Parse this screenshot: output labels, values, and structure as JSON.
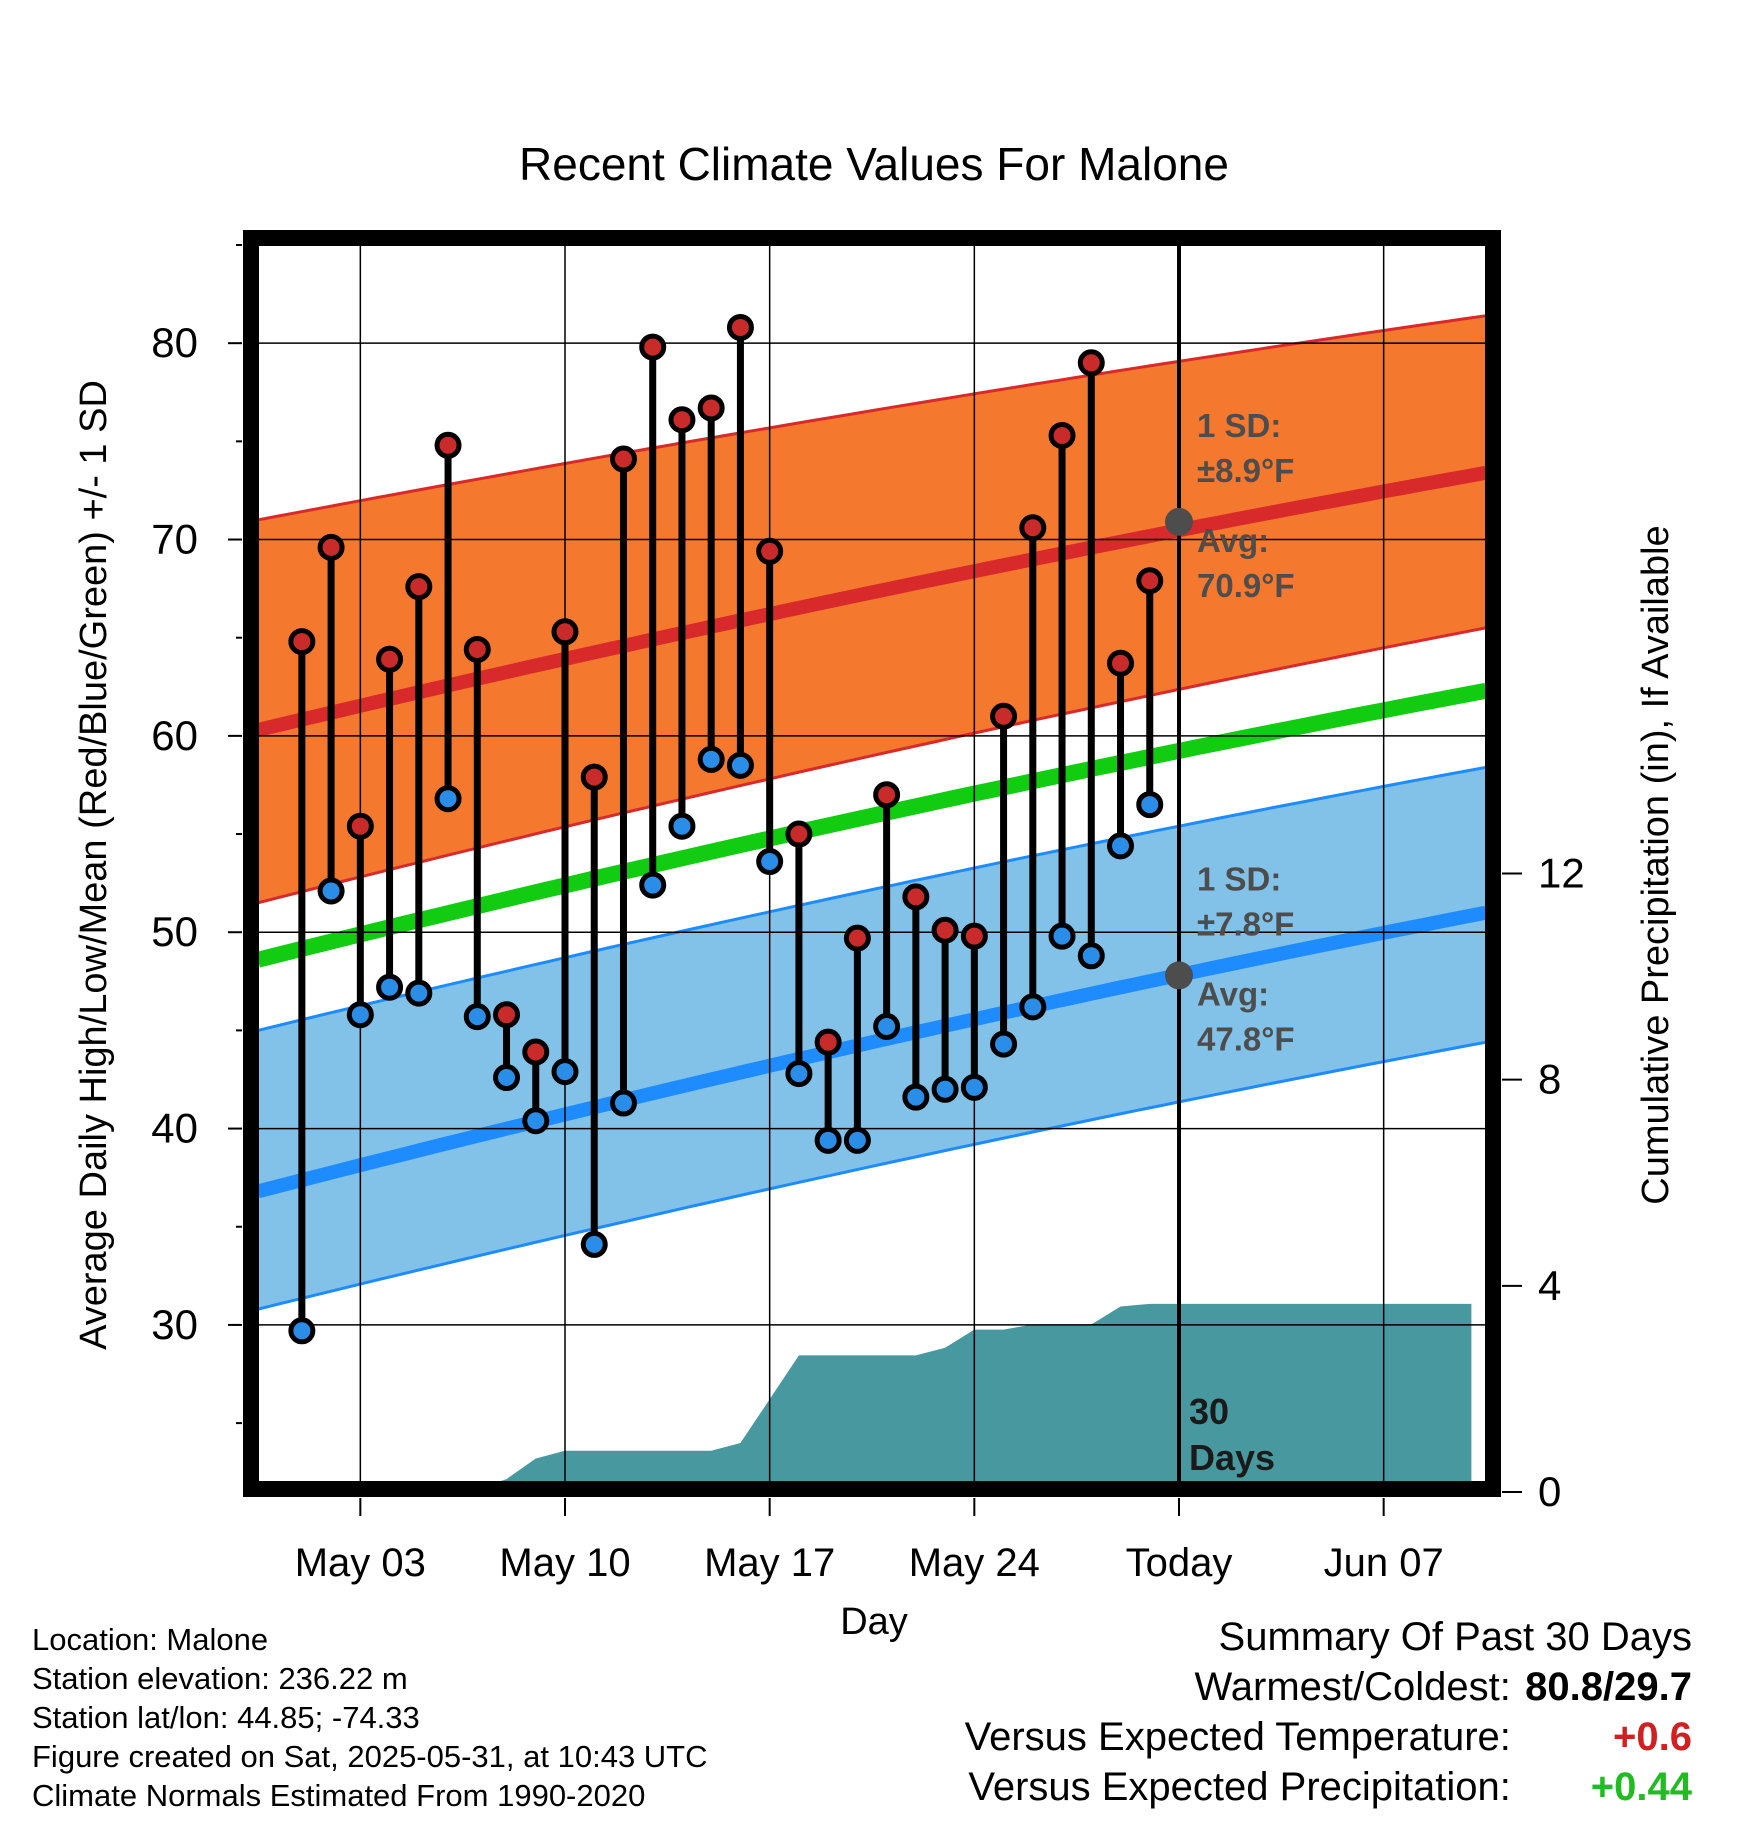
{
  "chart_data": {
    "type": "line",
    "title": "Recent Climate Values For Malone",
    "xlabel": "Day",
    "ylabel": "Average Daily High/Low/Mean (Red/Blue/Green) +/- 1 SD",
    "y2label": "Cumulative Precipitation (in), If Available",
    "ylim": [
      22,
      85
    ],
    "y2lim": [
      0,
      24
    ],
    "xlim": [
      -1.5,
      40.5
    ],
    "x_tick_labels": [
      "May 03",
      "May 10",
      "May 17",
      "May 24",
      "Today",
      "Jun 07"
    ],
    "y_ticks": [
      30,
      40,
      50,
      60,
      70,
      80
    ],
    "y2_ticks": [
      0,
      4,
      8,
      12
    ],
    "today_label": "30\nDays",
    "high_band": {
      "start": {
        "lower": 51.5,
        "mean": 60.3,
        "upper": 71.0
      },
      "end": {
        "lower": 65.5,
        "mean": 73.4,
        "upper": 81.4
      },
      "sd_label": "1 SD:",
      "sd_value": "±8.9°F",
      "avg_label": "Avg:",
      "avg_value": "70.9°F",
      "today_avg": 70.9
    },
    "low_band": {
      "start": {
        "lower": 30.8,
        "mean": 36.8,
        "upper": 45.0
      },
      "end": {
        "lower": 44.4,
        "mean": 51.0,
        "upper": 58.4
      },
      "sd_label": "1 SD:",
      "sd_value": "±7.8°F",
      "avg_label": "Avg:",
      "avg_value": "47.8°F",
      "today_avg": 47.8
    },
    "mean_line": {
      "start": 48.6,
      "end": 62.3
    },
    "days": [
      0,
      1,
      2,
      3,
      4,
      5,
      6,
      7,
      8,
      9,
      10,
      11,
      12,
      13,
      14,
      15,
      16,
      17,
      18,
      19,
      20,
      21,
      22,
      23,
      24,
      25,
      26,
      27,
      28,
      29
    ],
    "highs": [
      64.8,
      69.6,
      55.4,
      63.9,
      67.6,
      74.8,
      64.4,
      45.8,
      43.9,
      65.3,
      57.9,
      74.1,
      79.8,
      76.1,
      76.7,
      80.8,
      69.4,
      55.0,
      44.4,
      49.7,
      57.0,
      51.8,
      50.1,
      49.8,
      61.0,
      70.6,
      75.3,
      79.0,
      63.7,
      67.9
    ],
    "lows": [
      29.7,
      52.1,
      45.8,
      47.2,
      46.9,
      56.8,
      45.7,
      42.6,
      40.4,
      42.9,
      34.1,
      41.3,
      52.4,
      55.4,
      58.8,
      58.5,
      53.6,
      42.8,
      39.4,
      39.4,
      45.2,
      41.6,
      42.0,
      42.1,
      44.3,
      46.2,
      49.8,
      48.8,
      54.4,
      56.5
    ],
    "precip_cumulative": {
      "x": [
        -1.0,
        0,
        1,
        2,
        3,
        4,
        5,
        6,
        7,
        8,
        9,
        10,
        11,
        12,
        13,
        14,
        15,
        16,
        17,
        18,
        19,
        20,
        21,
        22,
        23,
        24,
        25,
        26,
        27,
        28,
        29,
        30,
        31,
        40
      ],
      "y": [
        0,
        0,
        0,
        0,
        0,
        0.05,
        0.05,
        0.06,
        0.25,
        0.65,
        0.8,
        0.8,
        0.8,
        0.8,
        0.8,
        0.8,
        0.95,
        1.8,
        2.65,
        2.65,
        2.65,
        2.65,
        2.65,
        2.8,
        3.15,
        3.15,
        3.25,
        3.25,
        3.25,
        3.6,
        3.65,
        3.65,
        3.65,
        3.65
      ],
      "end_value": 3.65
    },
    "colors": {
      "high_band": "#f5782f",
      "high_mean": "#d82a2a",
      "high_edge": "#d82a2a",
      "low_band": "#82c1e8",
      "low_mean": "#1e8cff",
      "low_edge": "#1e8cff",
      "mean_line": "#11cc11",
      "precip": "#4898a0",
      "high_dot": "#c92a2a",
      "low_dot": "#2a8ee8",
      "annotation": "#4d4d4d"
    }
  },
  "footer": {
    "location": "Location: Malone",
    "elevation": "Station elevation: 236.22 m",
    "latlon": "Station lat/lon: 44.85; -74.33",
    "created": "Figure created on Sat, 2025-05-31, at 10:43 UTC",
    "normals": "Climate Normals Estimated From 1990-2020"
  },
  "summary": {
    "heading": "Summary Of Past 30 Days",
    "warm_cold_label": "Warmest/Coldest:",
    "warm_cold_value": "80.8/29.7",
    "temp_label": "Versus Expected Temperature:",
    "temp_value": "+0.6",
    "precip_label": "Versus Expected Precipitation:",
    "precip_value": "+0.44"
  }
}
